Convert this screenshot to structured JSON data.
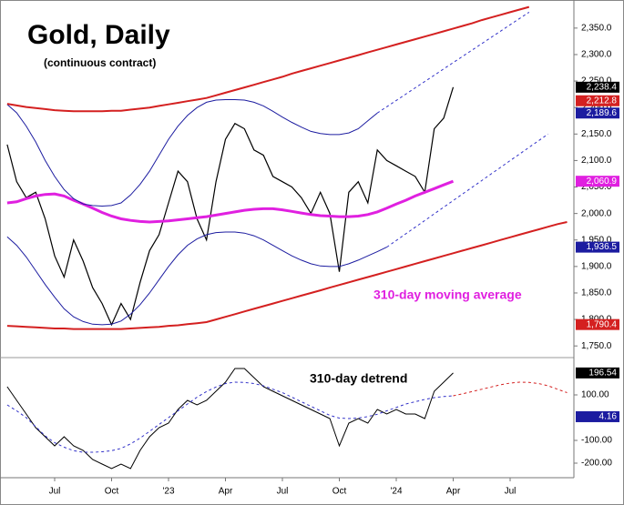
{
  "chart_data": [
    {
      "type": "line",
      "title": "Gold, Daily",
      "subtitle": "(continuous contract)",
      "annotation": "310-day moving average",
      "annotation_color": "#e020e0",
      "ylim": [
        1728,
        2403
      ],
      "yticks": [
        {
          "value": 1750,
          "label": "1,750.0"
        },
        {
          "value": 1800,
          "label": "1,800.0"
        },
        {
          "value": 1850,
          "label": "1,850.0"
        },
        {
          "value": 1900,
          "label": "1,900.0"
        },
        {
          "value": 1950,
          "label": "1,950.0"
        },
        {
          "value": 2000,
          "label": "2,000.0"
        },
        {
          "value": 2050,
          "label": "2,050.0"
        },
        {
          "value": 2100,
          "label": "2,100.0"
        },
        {
          "value": 2150,
          "label": "2,150.0"
        },
        {
          "value": 2200,
          "label": "2,200.0"
        },
        {
          "value": 2250,
          "label": "2,250.0"
        },
        {
          "value": 2300,
          "label": "2,300.0"
        },
        {
          "value": 2350,
          "label": "2,350.0"
        }
      ],
      "series": [
        {
          "color": "#000000",
          "width": 1.2,
          "values": [
            2130,
            2060,
            2030,
            2040,
            1990,
            1920,
            1880,
            1950,
            1910,
            1860,
            1830,
            1790,
            1830,
            1800,
            1870,
            1930,
            1960,
            2020,
            2080,
            2060,
            1990,
            1950,
            2060,
            2140,
            2170,
            2160,
            2120,
            2110,
            2070,
            2060,
            2050,
            2030,
            2000,
            2040,
            2000,
            1890,
            2040,
            2060,
            2020,
            2120,
            2100,
            2090,
            2080,
            2070,
            2040,
            2160,
            2180,
            2238.4,
            null,
            null,
            null,
            null,
            null,
            null,
            null,
            null,
            null,
            null,
            null,
            null
          ]
        },
        {
          "color": "#e020e0",
          "width": 3,
          "values": [
            2020,
            2022,
            2028,
            2033,
            2036,
            2037,
            2033,
            2025,
            2018,
            2010,
            2002,
            1995,
            1990,
            1987,
            1985,
            1984,
            1985,
            1986,
            1988,
            1990,
            1992,
            1994,
            1997,
            2000,
            2003,
            2006,
            2008,
            2009,
            2009,
            2007,
            2004,
            2001,
            1998,
            1996,
            1995,
            1994,
            1994,
            1995,
            1998,
            2003,
            2010,
            2018,
            2025,
            2033,
            2040,
            2047,
            2054,
            2060.9,
            null,
            null,
            null,
            null,
            null,
            null,
            null,
            null,
            null,
            null,
            null,
            null
          ]
        },
        {
          "color": "#1c1ca0",
          "width": 1,
          "values": [
            2206,
            2190,
            2165,
            2135,
            2100,
            2070,
            2045,
            2028,
            2018,
            2015,
            2014,
            2015,
            2020,
            2035,
            2055,
            2080,
            2110,
            2140,
            2165,
            2185,
            2200,
            2210,
            2214,
            2215,
            2215,
            2214,
            2210,
            2203,
            2193,
            2182,
            2172,
            2163,
            2155,
            2151,
            2149,
            2149,
            2152,
            2160,
            2175,
            2189.6,
            null,
            null,
            null,
            null,
            null,
            null,
            null,
            null,
            null,
            null,
            null,
            null,
            null,
            null,
            null,
            null,
            null,
            null,
            null,
            null
          ]
        },
        {
          "color": "#3030c8",
          "width": 1,
          "dash": true,
          "values": [
            null,
            null,
            null,
            null,
            null,
            null,
            null,
            null,
            null,
            null,
            null,
            null,
            null,
            null,
            null,
            null,
            null,
            null,
            null,
            null,
            null,
            null,
            null,
            null,
            null,
            null,
            null,
            null,
            null,
            null,
            null,
            null,
            null,
            null,
            null,
            null,
            null,
            null,
            null,
            2189.6,
            2201.5,
            2213.4,
            2225.3,
            2237.2,
            2249.1,
            2261,
            2272.9,
            2284.8,
            2296.7,
            2308.6,
            2320.5,
            2332.4,
            2344.3,
            2356.2,
            2368.1,
            2380,
            null,
            null,
            null,
            null
          ]
        },
        {
          "color": "#1c1ca0",
          "width": 1,
          "values": [
            1956,
            1940,
            1918,
            1892,
            1866,
            1842,
            1820,
            1805,
            1796,
            1791,
            1790,
            1791,
            1797,
            1810,
            1828,
            1850,
            1875,
            1900,
            1922,
            1940,
            1952,
            1960,
            1964,
            1965,
            1965,
            1963,
            1958,
            1950,
            1940,
            1930,
            1920,
            1912,
            1905,
            1901,
            1900,
            1900,
            1905,
            1912,
            1920,
            1928,
            1936.5,
            null,
            null,
            null,
            null,
            null,
            null,
            null,
            null,
            null,
            null,
            null,
            null,
            null,
            null,
            null,
            null,
            null,
            null,
            null
          ]
        },
        {
          "color": "#3030c8",
          "width": 1,
          "dash": true,
          "values": [
            null,
            null,
            null,
            null,
            null,
            null,
            null,
            null,
            null,
            null,
            null,
            null,
            null,
            null,
            null,
            null,
            null,
            null,
            null,
            null,
            null,
            null,
            null,
            null,
            null,
            null,
            null,
            null,
            null,
            null,
            null,
            null,
            null,
            null,
            null,
            null,
            null,
            null,
            null,
            null,
            1936.5,
            1949.1,
            1961.6,
            1974.2,
            1986.7,
            1999.3,
            2011.9,
            2024.4,
            2037,
            2049.5,
            2062.1,
            2074.7,
            2087.2,
            2099.8,
            2112.3,
            2124.9,
            2137.5,
            2150,
            null,
            null
          ]
        },
        {
          "color": "#d42020",
          "width": 2,
          "values": [
            2207,
            2204,
            2201,
            2199,
            2197,
            2195,
            2194,
            2193,
            2193,
            2193,
            2193,
            2194,
            2194,
            2196,
            2198,
            2200,
            2203,
            2206,
            2209,
            2212,
            2215,
            2218,
            2223,
            2228,
            2233,
            2238,
            2243,
            2248,
            2253,
            2258,
            2264,
            2269,
            2274,
            2279,
            2284,
            2289,
            2294,
            2299,
            2304,
            2309,
            2314,
            2319,
            2324,
            2329,
            2334,
            2339,
            2344,
            2349,
            2354,
            2359,
            2365,
            2370,
            2375,
            2380,
            2385,
            2390,
            null,
            null,
            null,
            null
          ]
        },
        {
          "color": "#d42020",
          "width": 2,
          "values": [
            1788,
            1787,
            1786,
            1785,
            1784,
            1783,
            1783,
            1782,
            1782,
            1782,
            1782,
            1782,
            1782,
            1783,
            1784,
            1785,
            1786,
            1788,
            1789,
            1791,
            1793,
            1795,
            1800,
            1805,
            1810,
            1815,
            1820,
            1825,
            1830,
            1835,
            1840,
            1845,
            1850,
            1855,
            1860,
            1865,
            1870,
            1875,
            1880,
            1885,
            1890,
            1895,
            1900,
            1905,
            1910,
            1915,
            1920,
            1925,
            1930,
            1935,
            1940,
            1945,
            1950,
            1955,
            1960,
            1965,
            1970,
            1975,
            1980,
            1984
          ]
        }
      ],
      "flags": [
        {
          "value": 2238.4,
          "label": "2,238.4",
          "color": "#000000"
        },
        {
          "value": 2212.8,
          "label": "2,212.8",
          "color": "#d42020"
        },
        {
          "value": 2189.6,
          "label": "2,189.6",
          "color": "#1c1ca0"
        },
        {
          "value": 2060.9,
          "label": "2,060.9",
          "color": "#e020e0"
        },
        {
          "value": 1936.5,
          "label": "1,936.5",
          "color": "#1c1ca0"
        },
        {
          "value": 1790.4,
          "label": "1,790.4",
          "color": "#d42020"
        }
      ]
    },
    {
      "type": "line",
      "annotation": "310-day detrend",
      "annotation_color": "#000000",
      "categories": [
        null,
        null,
        null,
        null,
        null,
        "Jul",
        null,
        null,
        null,
        null,
        null,
        "Oct",
        null,
        null,
        null,
        null,
        null,
        "'23",
        null,
        null,
        null,
        null,
        null,
        "Apr",
        null,
        null,
        null,
        null,
        null,
        "Jul",
        null,
        null,
        null,
        null,
        null,
        "Oct",
        null,
        null,
        null,
        null,
        null,
        "'24",
        null,
        null,
        null,
        null,
        null,
        "Apr",
        null,
        null,
        null,
        null,
        null,
        "Jul",
        null,
        null,
        null,
        null,
        null,
        null
      ],
      "ylim": [
        -264,
        264
      ],
      "yticks": [
        {
          "value": 100,
          "label": "100.00"
        },
        {
          "value": -100,
          "label": "-100.00"
        },
        {
          "value": -200,
          "label": "-200.00"
        }
      ],
      "series": [
        {
          "color": "#000000",
          "width": 1,
          "values": [
            136,
            76,
            16,
            -44,
            -84,
            -124,
            -84,
            -124,
            -144,
            -184,
            -204,
            -224,
            -204,
            -224,
            -144,
            -84,
            -44,
            -24,
            36,
            76,
            56,
            76,
            116,
            156,
            216,
            216,
            176,
            136,
            116,
            96,
            76,
            56,
            36,
            16,
            -4,
            -124,
            -24,
            -4,
            -24,
            36,
            16,
            36,
            16,
            16,
            -4,
            116,
            156,
            196.54,
            null,
            null,
            null,
            null,
            null,
            null,
            null,
            null,
            null,
            null,
            null,
            null
          ]
        },
        {
          "color": "#3030c8",
          "width": 1,
          "dash": true,
          "values": [
            56,
            30,
            0,
            -40,
            -80,
            -110,
            -130,
            -145,
            -152,
            -152,
            -150,
            -145,
            -135,
            -115,
            -90,
            -60,
            -30,
            0,
            30,
            60,
            90,
            115,
            135,
            150,
            156,
            155,
            150,
            140,
            125,
            110,
            90,
            70,
            50,
            30,
            10,
            -2,
            -4,
            -2,
            5,
            15,
            30,
            45,
            60,
            70,
            80,
            88,
            93,
            96,
            null,
            null,
            null,
            null,
            null,
            null,
            null,
            null,
            null,
            null,
            null,
            null
          ]
        },
        {
          "color": "#d42020",
          "width": 1,
          "dash": true,
          "values": [
            null,
            null,
            null,
            null,
            null,
            null,
            null,
            null,
            null,
            null,
            null,
            null,
            null,
            null,
            null,
            null,
            null,
            null,
            null,
            null,
            null,
            null,
            null,
            null,
            null,
            null,
            null,
            null,
            null,
            null,
            null,
            null,
            null,
            null,
            null,
            null,
            null,
            null,
            null,
            null,
            null,
            null,
            null,
            null,
            null,
            null,
            null,
            96,
            105,
            115,
            125,
            135,
            145,
            152,
            156,
            155,
            150,
            140,
            125,
            110
          ]
        }
      ],
      "flags": [
        {
          "value": 196.54,
          "label": "196.54",
          "color": "#000000"
        },
        {
          "value": 4.16,
          "label": "4.16",
          "color": "#1c1ca0"
        }
      ]
    }
  ]
}
